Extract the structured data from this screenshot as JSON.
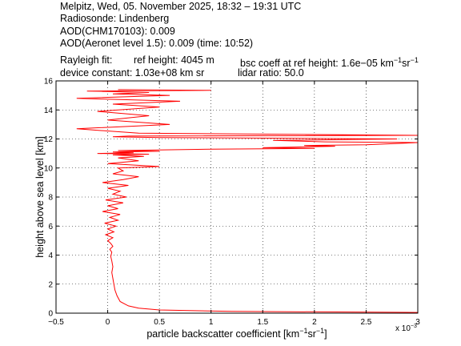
{
  "header": {
    "line1": "Melpitz, Wed, 05. November 2025, 18:32 – 19:31 UTC",
    "line2": "Radiosonde: Lindenberg",
    "line3": "AOD(CHM170103): 0.009",
    "line4": "AOD(Aeronet level 1.5): 0.009   (time: 10:52)",
    "rayleigh_label": "Rayleigh fit:",
    "ref_height": "ref height: 4045 m",
    "bsc_coeff": "bsc coeff at ref height: 1.6e−05 km",
    "bsc_unit_exp1": "−1",
    "bsc_unit_sr": "sr",
    "bsc_unit_exp2": "−1",
    "device_constant": "device constant: 1.03e+08 km sr",
    "lidar_ratio": "lidar ratio: 50.0"
  },
  "chart_data": {
    "type": "line",
    "title": "",
    "xlabel": "particle backscatter coefficient [km⁻¹sr⁻¹]",
    "xlabel_parts": {
      "main": "particle backscatter coefficient [km",
      "exp1": "−1",
      "mid": "sr",
      "exp2": "−1",
      "end": "]"
    },
    "ylabel": "height above sea level [km]",
    "x_multiplier": "x 10",
    "x_multiplier_exp": "−3",
    "xlim": [
      -0.5,
      3
    ],
    "ylim": [
      0,
      16
    ],
    "xticks": [
      -0.5,
      0,
      0.5,
      1,
      1.5,
      2,
      2.5,
      3
    ],
    "xtick_labels": [
      "−0.5",
      "0",
      "0.5",
      "1",
      "1.5",
      "2",
      "2.5",
      "3"
    ],
    "yticks": [
      0,
      2,
      4,
      6,
      8,
      10,
      12,
      14,
      16
    ],
    "ytick_labels": [
      "0",
      "2",
      "4",
      "6",
      "8",
      "10",
      "12",
      "14",
      "16"
    ],
    "grid": true,
    "line_color": "#ff0000",
    "series": [
      {
        "x": [
          3.0,
          1.2,
          0.5,
          0.3,
          0.2,
          0.12,
          0.09,
          0.07,
          0.06,
          0.05,
          0.04,
          0.05,
          0.04,
          0.03,
          0.04,
          0.02,
          0.05,
          0.03,
          0.0,
          0.05,
          -0.02,
          0.06,
          0.0,
          0.08,
          -0.03,
          0.1,
          0.02,
          0.12,
          -0.05,
          0.1,
          0.0,
          0.15,
          -0.02,
          0.18,
          0.05,
          0.12,
          0.0,
          0.2,
          -0.05,
          0.15,
          0.3,
          0.05,
          0.15,
          0.1,
          0.5,
          0.0,
          0.3,
          0.1,
          0.35,
          0.05,
          0.4,
          -0.1,
          0.25,
          0.05,
          0.5,
          0.1,
          1.0,
          2.0,
          1.5,
          2.2,
          1.9,
          2.5,
          3.0,
          2.1,
          1.6,
          2.8,
          0.5,
          0.05,
          0.2,
          3.0,
          0.3,
          -0.3,
          0.6,
          0.0,
          0.4,
          -0.1,
          0.5,
          0.05,
          0.7,
          -0.3,
          0.6,
          0.05,
          0.4,
          -0.2,
          1.0,
          0.1
        ],
        "y": [
          0.05,
          0.12,
          0.22,
          0.35,
          0.5,
          0.8,
          1.2,
          1.6,
          2.0,
          2.4,
          2.8,
          3.2,
          3.6,
          3.9,
          4.2,
          4.4,
          4.6,
          4.8,
          5.0,
          5.2,
          5.4,
          5.6,
          5.8,
          6.0,
          6.2,
          6.4,
          6.6,
          6.8,
          7.0,
          7.2,
          7.4,
          7.6,
          7.8,
          8.0,
          8.2,
          8.4,
          8.6,
          8.8,
          9.0,
          9.2,
          9.4,
          9.6,
          9.8,
          10.0,
          10.1,
          10.3,
          10.5,
          10.7,
          10.8,
          10.9,
          10.95,
          11.0,
          11.05,
          11.1,
          11.15,
          11.2,
          11.3,
          11.35,
          11.4,
          11.5,
          11.55,
          11.6,
          11.75,
          11.8,
          11.9,
          12.0,
          12.1,
          12.15,
          12.2,
          12.25,
          12.4,
          12.7,
          13.0,
          13.3,
          13.6,
          13.9,
          14.2,
          14.4,
          14.6,
          14.8,
          15.0,
          15.1,
          15.2,
          15.3,
          15.35,
          15.4
        ]
      }
    ]
  }
}
